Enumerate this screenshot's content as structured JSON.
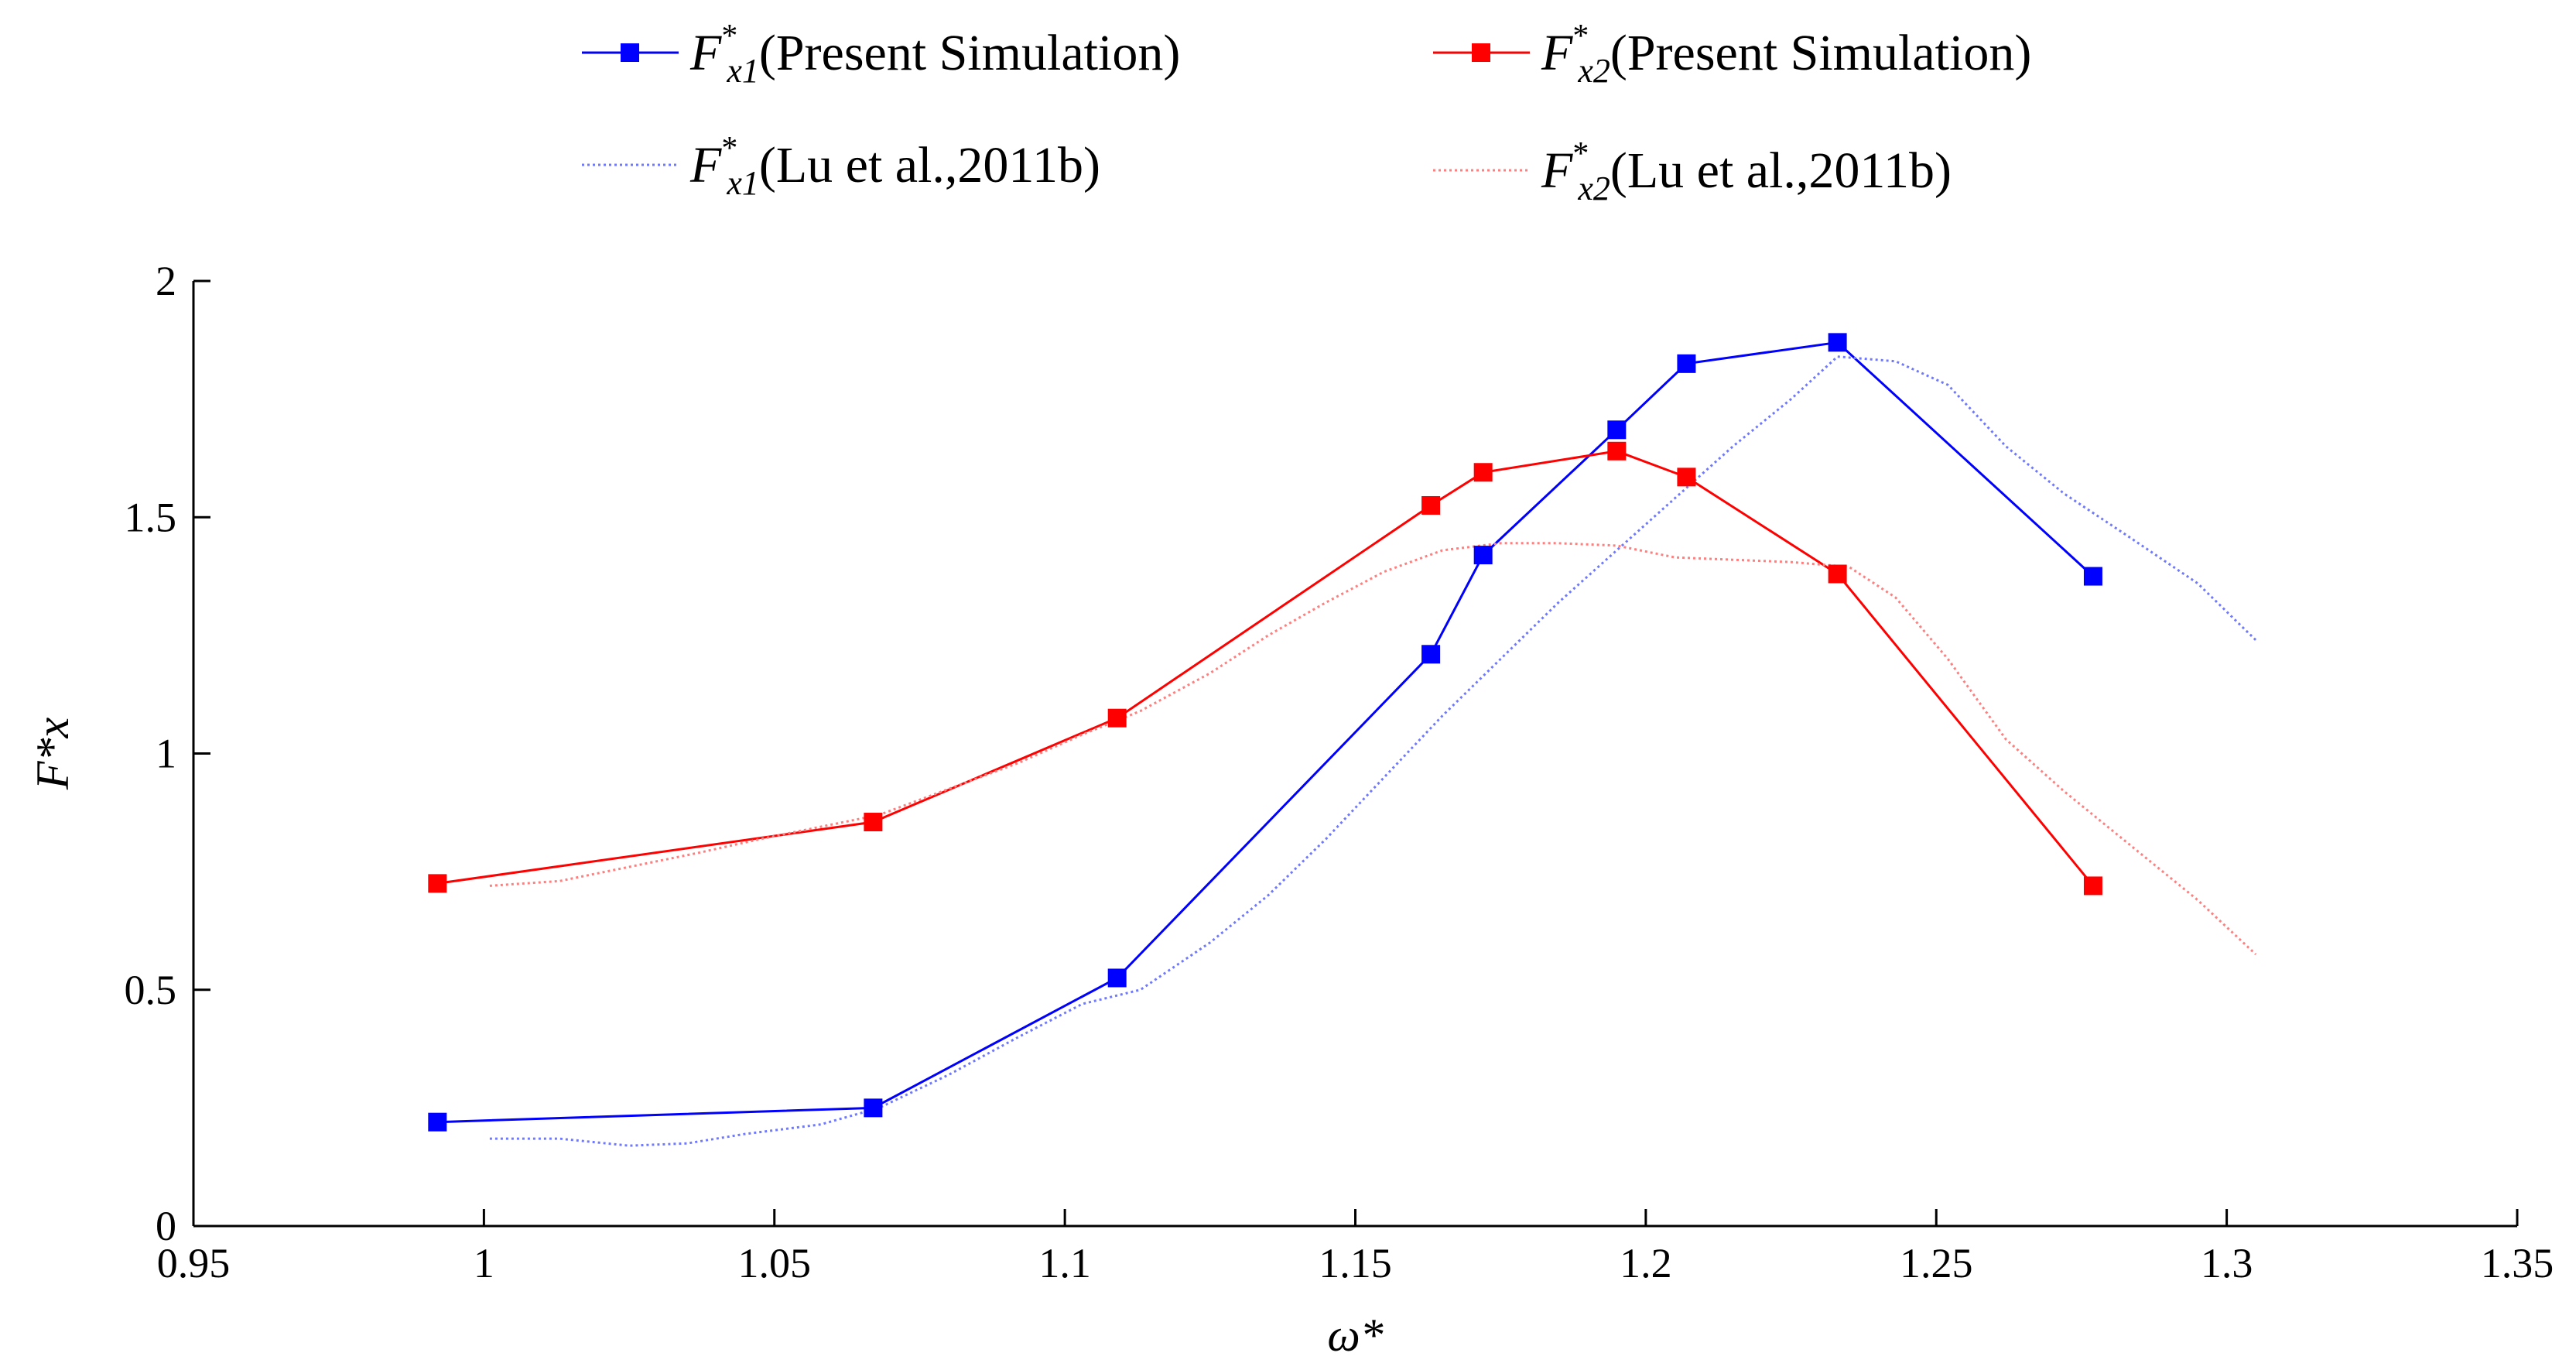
{
  "chart_data": {
    "type": "line",
    "title": "",
    "xlabel": "ω*",
    "ylabel": "F*x",
    "xlim": [
      0.95,
      1.35
    ],
    "ylim": [
      0,
      2
    ],
    "xticks": [
      "0.95",
      "1",
      "1.05",
      "1.1",
      "1.15",
      "1.2",
      "1.25",
      "1.3",
      "1.35"
    ],
    "yticks": [
      "0",
      "0.5",
      "1",
      "1.5",
      "2"
    ],
    "grid": false,
    "legend_position": "top",
    "colors": {
      "blue": "#0000ff",
      "red": "#ff0000",
      "blue_faint": "#6f79ff",
      "red_faint": "#ff7f7f"
    },
    "series": [
      {
        "name": "F*x1(Present Simulation)",
        "legend": {
          "symbol": "F",
          "sup": "*",
          "sub": "x1",
          "label": "(Present Simulation)"
        },
        "color": "blue",
        "style": "solid-marker",
        "x": [
          0.992,
          1.067,
          1.109,
          1.163,
          1.172,
          1.195,
          1.207,
          1.233,
          1.277
        ],
        "y": [
          0.22,
          0.25,
          0.525,
          1.21,
          1.42,
          1.685,
          1.825,
          1.87,
          1.375
        ]
      },
      {
        "name": "F*x2(Present Simulation)",
        "legend": {
          "symbol": "F",
          "sup": "*",
          "sub": "x2",
          "label": "(Present Simulation)"
        },
        "color": "red",
        "style": "solid-marker",
        "x": [
          0.992,
          1.067,
          1.109,
          1.163,
          1.172,
          1.195,
          1.207,
          1.233,
          1.277
        ],
        "y": [
          0.725,
          0.855,
          1.075,
          1.525,
          1.595,
          1.64,
          1.585,
          1.38,
          0.72
        ]
      },
      {
        "name": "F*x1(Lu et al.,2011b)",
        "legend": {
          "symbol": "F",
          "sup": "*",
          "sub": "x1",
          "label": "(Lu et al.,2011b)"
        },
        "color": "blue_faint",
        "style": "dotted",
        "x": [
          1.001,
          1.013,
          1.025,
          1.035,
          1.045,
          1.058,
          1.068,
          1.08,
          1.092,
          1.103,
          1.113,
          1.125,
          1.135,
          1.145,
          1.155,
          1.165,
          1.175,
          1.185,
          1.195,
          1.205,
          1.215,
          1.225,
          1.233,
          1.243,
          1.252,
          1.262,
          1.272,
          1.283,
          1.295,
          1.305
        ],
        "y": [
          0.185,
          0.185,
          0.17,
          0.175,
          0.195,
          0.215,
          0.25,
          0.32,
          0.4,
          0.47,
          0.5,
          0.6,
          0.7,
          0.82,
          0.95,
          1.08,
          1.2,
          1.32,
          1.43,
          1.54,
          1.65,
          1.75,
          1.84,
          1.83,
          1.78,
          1.65,
          1.55,
          1.46,
          1.36,
          1.24
        ]
      },
      {
        "name": "F*x2(Lu et al.,2011b)",
        "legend": {
          "symbol": "F",
          "sup": "*",
          "sub": "x2",
          "label": "(Lu et al.,2011b)"
        },
        "color": "red_faint",
        "style": "dotted",
        "x": [
          1.001,
          1.013,
          1.025,
          1.037,
          1.048,
          1.058,
          1.068,
          1.08,
          1.092,
          1.103,
          1.113,
          1.125,
          1.135,
          1.145,
          1.155,
          1.165,
          1.175,
          1.185,
          1.195,
          1.205,
          1.215,
          1.225,
          1.235,
          1.243,
          1.252,
          1.262,
          1.272,
          1.283,
          1.295,
          1.305
        ],
        "y": [
          0.72,
          0.73,
          0.76,
          0.79,
          0.82,
          0.845,
          0.87,
          0.925,
          0.98,
          1.04,
          1.09,
          1.17,
          1.25,
          1.32,
          1.385,
          1.43,
          1.445,
          1.445,
          1.44,
          1.415,
          1.41,
          1.405,
          1.395,
          1.33,
          1.2,
          1.03,
          0.92,
          0.81,
          0.69,
          0.575
        ]
      }
    ]
  }
}
